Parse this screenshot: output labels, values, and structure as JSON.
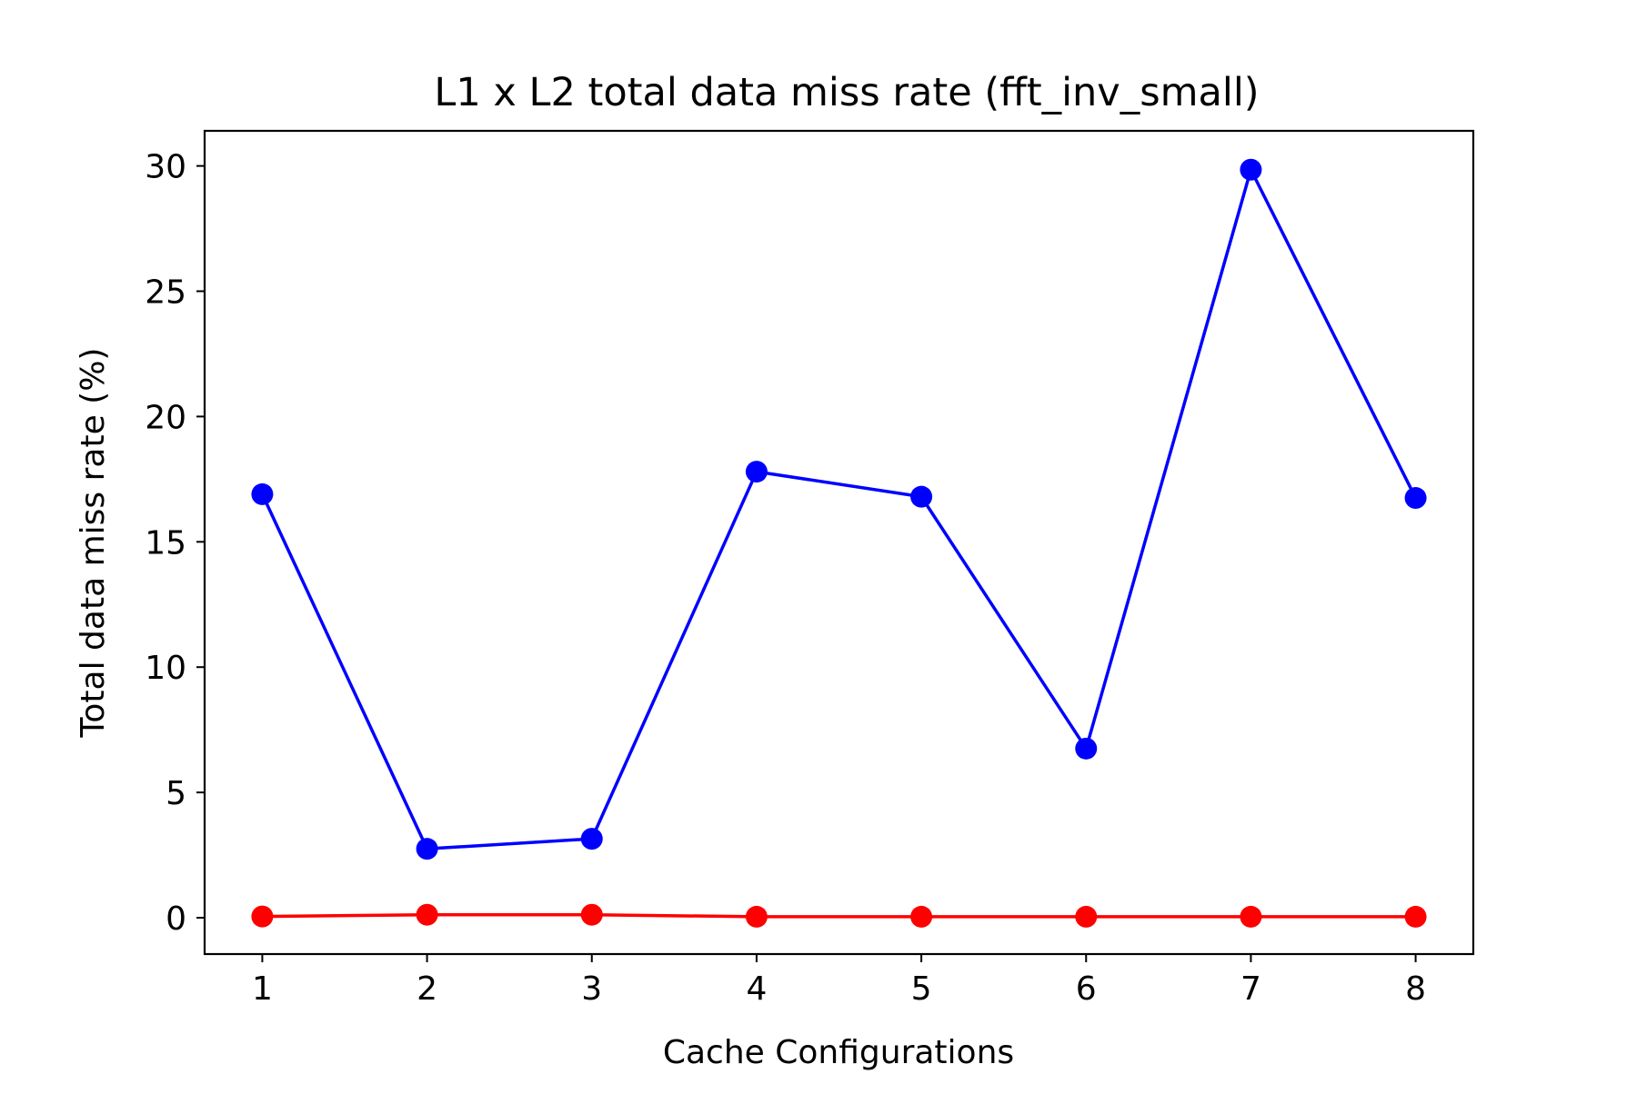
{
  "chart_data": {
    "type": "line",
    "title": "L1 x L2 total data miss rate (fft_inv_small)",
    "xlabel": "Cache Configurations",
    "ylabel": "Total data miss rate (%)",
    "x": [
      1,
      2,
      3,
      4,
      5,
      6,
      7,
      8
    ],
    "xticks": [
      "1",
      "2",
      "3",
      "4",
      "5",
      "6",
      "7",
      "8"
    ],
    "xlim": [
      0.65,
      8.35
    ],
    "yticks": [
      "0",
      "5",
      "10",
      "15",
      "20",
      "25",
      "30"
    ],
    "ylim": [
      -1.45,
      31.4
    ],
    "grid": false,
    "legend": "none",
    "series": [
      {
        "color": "#0000ff",
        "marker": "circle",
        "values": [
          16.9,
          2.75,
          3.15,
          17.8,
          16.8,
          6.75,
          29.85,
          16.75
        ]
      },
      {
        "color": "#ff0000",
        "marker": "circle",
        "values": [
          0.05,
          0.12,
          0.12,
          0.04,
          0.04,
          0.04,
          0.04,
          0.04
        ]
      }
    ]
  }
}
